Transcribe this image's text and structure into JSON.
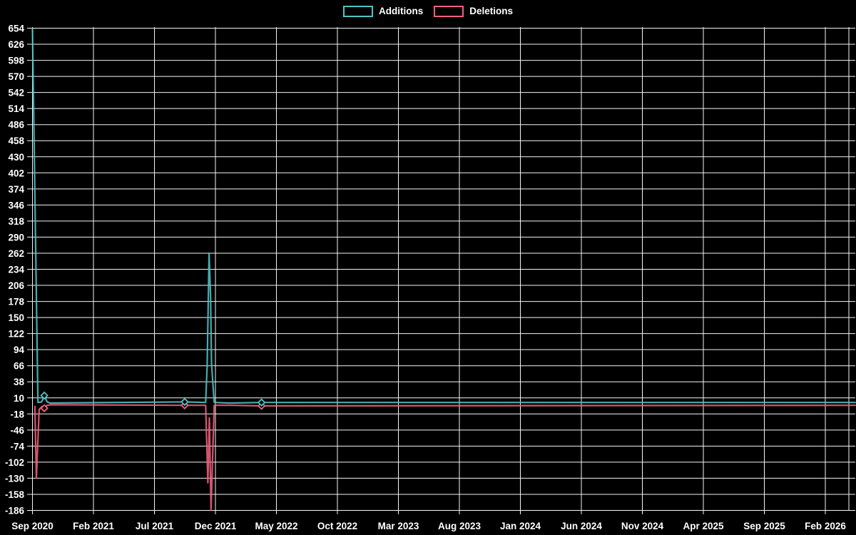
{
  "page": {
    "background": "#000000"
  },
  "legend": {
    "items": [
      {
        "label": "Additions",
        "color": "#4fc4c7"
      },
      {
        "label": "Deletions",
        "color": "#f2617e"
      }
    ]
  },
  "chart_data": {
    "type": "line",
    "title": "",
    "xlabel": "",
    "ylabel": "",
    "background": "#000000",
    "grid": true,
    "legend_position": "top-center",
    "ylim": [
      -186,
      654
    ],
    "y_ticks": [
      654,
      626,
      598,
      570,
      542,
      514,
      486,
      458,
      430,
      402,
      374,
      346,
      318,
      290,
      262,
      234,
      206,
      178,
      150,
      122,
      94,
      66,
      38,
      10,
      -18,
      -46,
      -74,
      -102,
      -130,
      -158,
      -186
    ],
    "x_ticks": [
      "Sep 2020",
      "Feb 2021",
      "Jul 2021",
      "Dec 2021",
      "May 2022",
      "Oct 2022",
      "Mar 2023",
      "Aug 2023",
      "Jan 2024",
      "Jun 2024",
      "Nov 2024",
      "Apr 2025",
      "Sep 2025",
      "Feb 2026"
    ],
    "x_tick_interval_months": 5,
    "x_axis_unit": "months since Sep 2020",
    "series": [
      {
        "name": "Additions",
        "color": "#4fc4c7",
        "points": [
          [
            0,
            654
          ],
          [
            0.45,
            2
          ],
          [
            0.75,
            3
          ],
          [
            0.97,
            14
          ],
          [
            1.2,
            3
          ],
          [
            1.45,
            1
          ],
          [
            12.48,
            3
          ],
          [
            14.2,
            2
          ],
          [
            14.32,
            65
          ],
          [
            14.48,
            262
          ],
          [
            14.6,
            186
          ],
          [
            14.68,
            70
          ],
          [
            14.9,
            2
          ],
          [
            16.0,
            1
          ],
          [
            16.3,
            1
          ],
          [
            18.78,
            2
          ],
          [
            67.5,
            2
          ]
        ],
        "markers": [
          [
            0.97,
            14
          ],
          [
            12.48,
            3
          ],
          [
            18.78,
            2
          ]
        ]
      },
      {
        "name": "Deletions",
        "color": "#f2617e",
        "points": [
          [
            0.2,
            -4
          ],
          [
            0.32,
            -130
          ],
          [
            0.55,
            -10
          ],
          [
            0.8,
            -5
          ],
          [
            0.97,
            -8
          ],
          [
            1.2,
            -3
          ],
          [
            1.45,
            -2
          ],
          [
            12.48,
            -3
          ],
          [
            14.2,
            -3
          ],
          [
            14.38,
            -138
          ],
          [
            14.5,
            -25
          ],
          [
            14.64,
            -186
          ],
          [
            14.9,
            -3
          ],
          [
            16.0,
            -3
          ],
          [
            16.3,
            -3
          ],
          [
            18.78,
            -4
          ],
          [
            67.5,
            -3
          ]
        ],
        "markers": [
          [
            0.97,
            -8
          ],
          [
            12.48,
            -3
          ],
          [
            18.78,
            -4
          ]
        ]
      }
    ]
  }
}
